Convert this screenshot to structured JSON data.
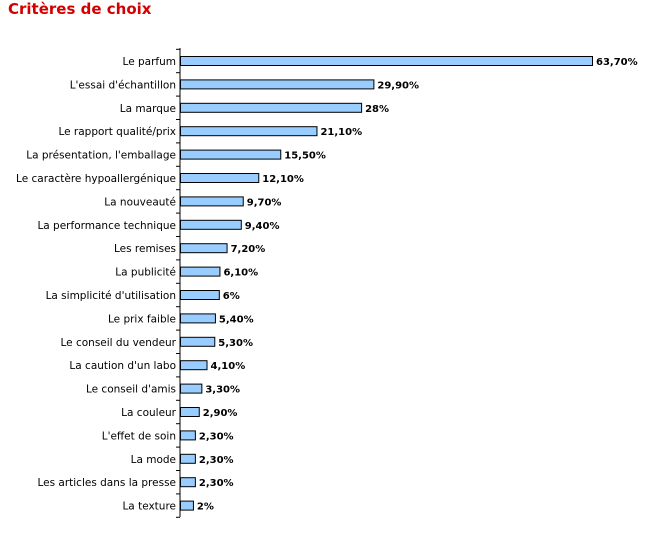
{
  "chart_data": {
    "type": "bar",
    "orientation": "horizontal",
    "title": "Critères de choix",
    "bar_color": "#99ccff",
    "title_color": "#d40000",
    "categories": [
      "Le parfum",
      "L'essai d'échantillon",
      "La marque",
      "Le rapport qualité/prix",
      "La présentation, l'emballage",
      "Le caractère hypoallergénique",
      "La nouveauté",
      "La performance technique",
      "Les remises",
      "La publicité",
      "La simplicité d'utilisation",
      "Le prix faible",
      "Le conseil du vendeur",
      "La caution d'un labo",
      "Le conseil d'amis",
      "La couleur",
      "L'effet de soin",
      "La mode",
      "Les articles dans la presse",
      "La texture"
    ],
    "values": [
      63.7,
      29.9,
      28,
      21.1,
      15.5,
      12.1,
      9.7,
      9.4,
      7.2,
      6.1,
      6,
      5.4,
      5.3,
      4.1,
      3.3,
      2.9,
      2.3,
      2.3,
      2.3,
      2
    ],
    "value_labels": [
      "63,70%",
      "29,90%",
      "28%",
      "21,10%",
      "15,50%",
      "12,10%",
      "9,70%",
      "9,40%",
      "7,20%",
      "6,10%",
      "6%",
      "5,40%",
      "5,30%",
      "4,10%",
      "3,30%",
      "2,90%",
      "2,30%",
      "2,30%",
      "2,30%",
      "2%"
    ],
    "xlim": [
      0,
      63.7
    ],
    "grid": false,
    "legend": "none"
  }
}
